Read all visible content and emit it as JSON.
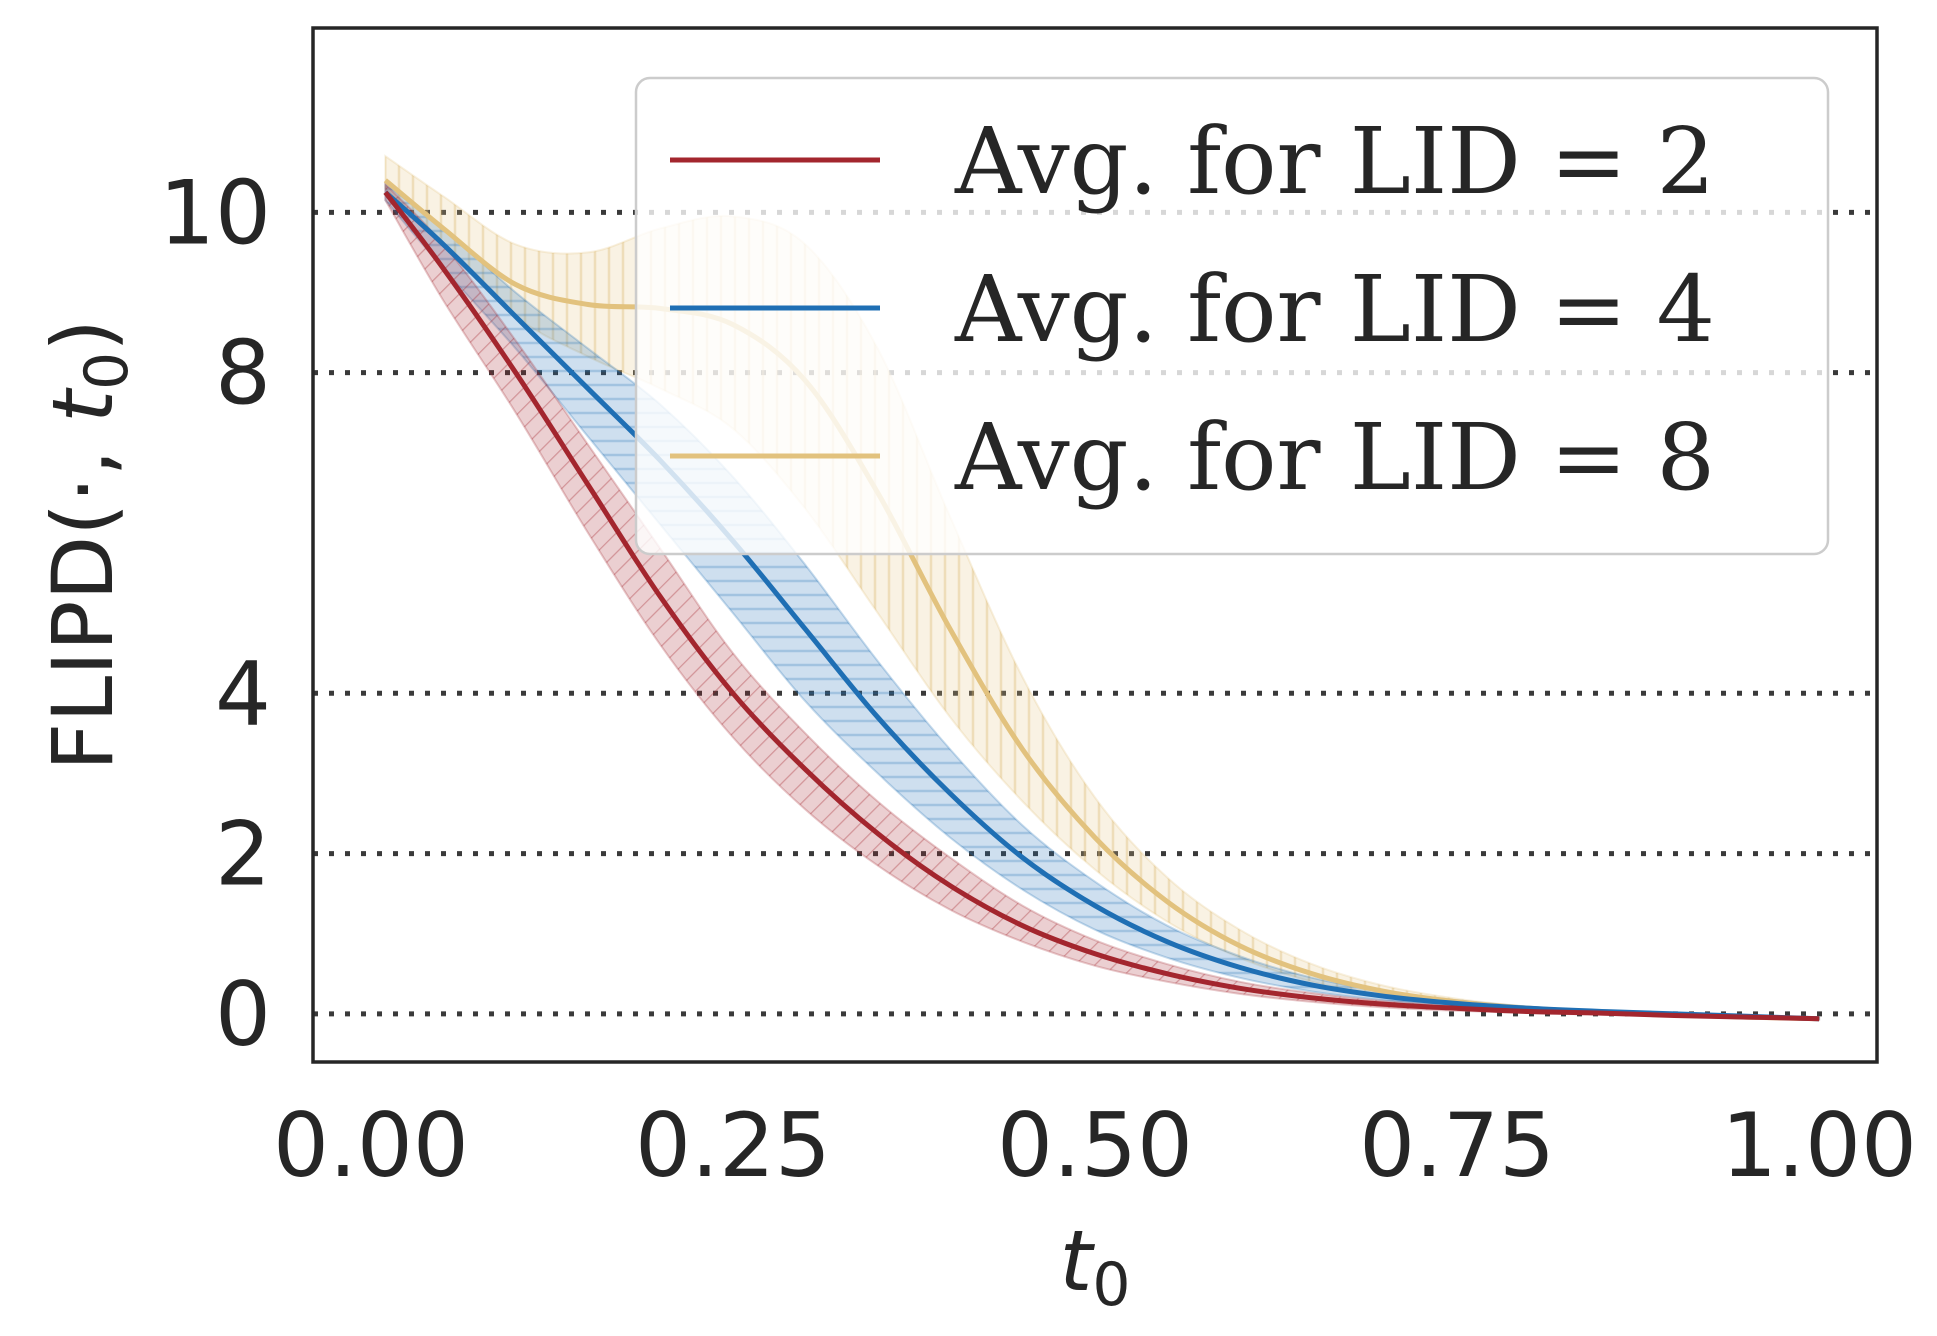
{
  "chart_data": {
    "type": "line",
    "xlabel": {
      "base": "t",
      "sub": "0"
    },
    "ylabel": {
      "prefix": "FLIPD(·, ",
      "base": "t",
      "sub": "0",
      "suffix": ")"
    },
    "xlim": [
      -0.04,
      1.04
    ],
    "ylim": [
      -0.6,
      12.3
    ],
    "xticks": [
      0,
      0.25,
      0.5,
      0.75,
      1
    ],
    "xtick_labels": [
      "0.00",
      "0.25",
      "0.50",
      "0.75",
      "1.00"
    ],
    "yticks": [
      0,
      2,
      4,
      8,
      10
    ],
    "ytick_labels": [
      "0",
      "2",
      "4",
      "8",
      "10"
    ],
    "grid": "dotted horizontal lines at y ticks",
    "legend_placement": "upper-right",
    "series": [
      {
        "name": "Avg. for LID = 2",
        "color": "#a3262e",
        "hatch": "diagonal",
        "x": [
          0.01,
          0.05,
          0.1,
          0.15,
          0.2,
          0.25,
          0.3,
          0.35,
          0.4,
          0.45,
          0.5,
          0.55,
          0.6,
          0.65,
          0.7,
          0.75,
          0.8,
          0.85,
          0.9,
          0.95,
          1.0
        ],
        "y": [
          10.25,
          9.3,
          8.0,
          6.6,
          5.2,
          4.0,
          3.05,
          2.25,
          1.6,
          1.1,
          0.75,
          0.5,
          0.32,
          0.2,
          0.12,
          0.07,
          0.03,
          0.01,
          -0.02,
          -0.04,
          -0.06
        ],
        "lower": [
          10.15,
          8.9,
          7.5,
          6.0,
          4.6,
          3.45,
          2.55,
          1.85,
          1.3,
          0.9,
          0.6,
          0.4,
          0.25,
          0.15,
          0.08,
          0.04,
          0.01,
          -0.01,
          -0.03,
          -0.05,
          -0.07
        ],
        "upper": [
          10.35,
          9.6,
          8.4,
          7.1,
          5.8,
          4.5,
          3.5,
          2.65,
          1.95,
          1.35,
          0.92,
          0.62,
          0.4,
          0.26,
          0.16,
          0.1,
          0.05,
          0.02,
          0.0,
          -0.03,
          -0.05
        ]
      },
      {
        "name": "Avg. for LID = 4",
        "color": "#1f6fb4",
        "hatch": "horizontal",
        "x": [
          0.01,
          0.05,
          0.1,
          0.15,
          0.2,
          0.25,
          0.3,
          0.35,
          0.4,
          0.45,
          0.5,
          0.55,
          0.6,
          0.65,
          0.7,
          0.75,
          0.8,
          0.85,
          0.9,
          0.95,
          1.0
        ],
        "y": [
          10.25,
          9.6,
          8.7,
          7.8,
          6.9,
          5.9,
          4.8,
          3.7,
          2.75,
          1.95,
          1.35,
          0.9,
          0.58,
          0.36,
          0.22,
          0.13,
          0.07,
          0.03,
          0.0,
          -0.03,
          -0.06
        ],
        "lower": [
          10.15,
          9.3,
          8.3,
          7.2,
          6.1,
          5.0,
          3.9,
          3.0,
          2.2,
          1.55,
          1.05,
          0.7,
          0.45,
          0.28,
          0.17,
          0.1,
          0.05,
          0.01,
          -0.02,
          -0.04,
          -0.07
        ],
        "upper": [
          10.35,
          9.8,
          9.0,
          8.3,
          7.6,
          6.7,
          5.6,
          4.4,
          3.3,
          2.35,
          1.65,
          1.1,
          0.72,
          0.45,
          0.28,
          0.17,
          0.09,
          0.04,
          0.01,
          -0.02,
          -0.05
        ]
      },
      {
        "name": "Avg. for LID = 8",
        "color": "#e2c27e",
        "hatch": "vertical",
        "x": [
          0.01,
          0.05,
          0.1,
          0.15,
          0.2,
          0.25,
          0.3,
          0.35,
          0.4,
          0.45,
          0.5,
          0.55,
          0.6,
          0.65,
          0.7,
          0.75,
          0.8,
          0.85,
          0.9,
          0.95,
          1.0
        ],
        "y": [
          10.4,
          9.8,
          9.1,
          8.85,
          8.8,
          8.6,
          7.9,
          6.5,
          4.8,
          3.3,
          2.2,
          1.4,
          0.85,
          0.5,
          0.28,
          0.15,
          0.07,
          0.02,
          -0.01,
          -0.04,
          -0.06
        ],
        "lower": [
          10.3,
          9.6,
          8.7,
          8.2,
          7.8,
          7.3,
          6.3,
          5.0,
          3.7,
          2.65,
          1.8,
          1.15,
          0.7,
          0.4,
          0.22,
          0.11,
          0.05,
          0.01,
          -0.02,
          -0.05,
          -0.07
        ],
        "upper": [
          10.7,
          10.2,
          9.6,
          9.5,
          9.8,
          9.95,
          9.6,
          8.3,
          6.2,
          4.2,
          2.7,
          1.7,
          1.05,
          0.62,
          0.35,
          0.19,
          0.09,
          0.03,
          0.0,
          -0.03,
          -0.05
        ]
      }
    ]
  }
}
